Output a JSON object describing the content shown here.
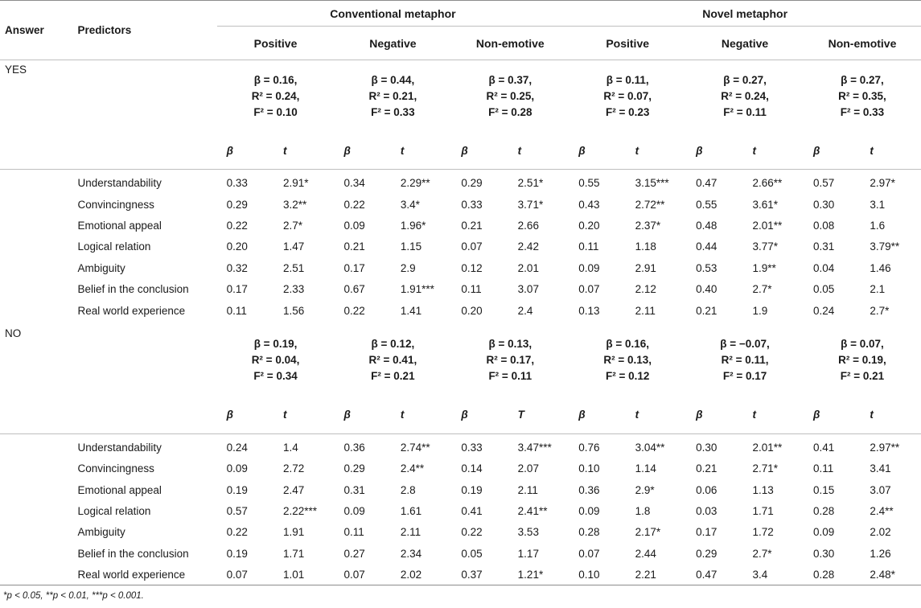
{
  "header": {
    "answer": "Answer",
    "predictors": "Predictors",
    "groups": [
      "Conventional metaphor",
      "Novel metaphor"
    ],
    "subgroups": [
      "Positive",
      "Negative",
      "Non-emotive",
      "Positive",
      "Negative",
      "Non-emotive"
    ]
  },
  "yes": {
    "label": "YES",
    "models": [
      {
        "beta": "β = 0.16,",
        "r2": "R² = 0.24,",
        "f2": "F² = 0.10"
      },
      {
        "beta": "β = 0.44,",
        "r2": "R² = 0.21,",
        "f2": "F² = 0.33"
      },
      {
        "beta": "β = 0.37,",
        "r2": "R² = 0.25,",
        "f2": "F² = 0.28"
      },
      {
        "beta": "β = 0.11,",
        "r2": "R² = 0.07,",
        "f2": "F² = 0.23"
      },
      {
        "beta": "β = 0.27,",
        "r2": "R² = 0.24,",
        "f2": "F² = 0.11"
      },
      {
        "beta": "β = 0.27,",
        "r2": "R² = 0.35,",
        "f2": "F² = 0.33"
      }
    ],
    "coef_headers": [
      "β",
      "t",
      "β",
      "t",
      "β",
      "t",
      "β",
      "t",
      "β",
      "t",
      "β",
      "t"
    ],
    "rows": [
      {
        "name": "Understandability",
        "cells": [
          "0.33",
          "2.91*",
          "0.34",
          "2.29**",
          "0.29",
          "2.51*",
          "0.55",
          "3.15***",
          "0.47",
          "2.66**",
          "0.57",
          "2.97*"
        ]
      },
      {
        "name": "Convincingness",
        "cells": [
          "0.29",
          "3.2**",
          "0.22",
          "3.4*",
          "0.33",
          "3.71*",
          "0.43",
          "2.72**",
          "0.55",
          "3.61*",
          "0.30",
          "3.1"
        ]
      },
      {
        "name": "Emotional appeal",
        "cells": [
          "0.22",
          "2.7*",
          "0.09",
          "1.96*",
          "0.21",
          "2.66",
          "0.20",
          "2.37*",
          "0.48",
          "2.01**",
          "0.08",
          "1.6"
        ]
      },
      {
        "name": "Logical relation",
        "cells": [
          "0.20",
          "1.47",
          "0.21",
          "1.15",
          "0.07",
          "2.42",
          "0.11",
          "1.18",
          "0.44",
          "3.77*",
          "0.31",
          "3.79**"
        ]
      },
      {
        "name": "Ambiguity",
        "cells": [
          "0.32",
          "2.51",
          "0.17",
          "2.9",
          "0.12",
          "2.01",
          "0.09",
          "2.91",
          "0.53",
          "1.9**",
          "0.04",
          "1.46"
        ]
      },
      {
        "name": "Belief in the conclusion",
        "cells": [
          "0.17",
          "2.33",
          "0.67",
          "1.91***",
          "0.11",
          "3.07",
          "0.07",
          "2.12",
          "0.40",
          "2.7*",
          "0.05",
          "2.1"
        ]
      },
      {
        "name": "Real world experience",
        "cells": [
          "0.11",
          "1.56",
          "0.22",
          "1.41",
          "0.20",
          "2.4",
          "0.13",
          "2.11",
          "0.21",
          "1.9",
          "0.24",
          "2.7*"
        ]
      }
    ]
  },
  "no": {
    "label": "NO",
    "models": [
      {
        "beta": "β = 0.19,",
        "r2": "R² = 0.04,",
        "f2": "F² = 0.34"
      },
      {
        "beta": "β = 0.12,",
        "r2": "R² = 0.41,",
        "f2": "F² = 0.21"
      },
      {
        "beta": "β = 0.13,",
        "r2": "R² = 0.17,",
        "f2": "F² = 0.11"
      },
      {
        "beta": "β = 0.16,",
        "r2": "R² = 0.13,",
        "f2": "F² = 0.12"
      },
      {
        "beta": "β = −0.07,",
        "r2": "R² = 0.11,",
        "f2": "F² = 0.17"
      },
      {
        "beta": "β = 0.07,",
        "r2": "R² = 0.19,",
        "f2": "F² = 0.21"
      }
    ],
    "coef_headers": [
      "β",
      "t",
      "β",
      "t",
      "β",
      "T",
      "β",
      "t",
      "β",
      "t",
      "β",
      "t"
    ],
    "rows": [
      {
        "name": "Understandability",
        "cells": [
          "0.24",
          "1.4",
          "0.36",
          "2.74**",
          "0.33",
          "3.47***",
          "0.76",
          "3.04**",
          "0.30",
          "2.01**",
          "0.41",
          "2.97**"
        ]
      },
      {
        "name": "Convincingness",
        "cells": [
          "0.09",
          "2.72",
          "0.29",
          "2.4**",
          "0.14",
          "2.07",
          "0.10",
          "1.14",
          "0.21",
          "2.71*",
          "0.11",
          "3.41"
        ]
      },
      {
        "name": "Emotional appeal",
        "cells": [
          "0.19",
          "2.47",
          "0.31",
          "2.8",
          "0.19",
          "2.11",
          "0.36",
          "2.9*",
          "0.06",
          "1.13",
          "0.15",
          "3.07"
        ]
      },
      {
        "name": "Logical relation",
        "cells": [
          "0.57",
          "2.22***",
          "0.09",
          "1.61",
          "0.41",
          "2.41**",
          "0.09",
          "1.8",
          "0.03",
          "1.71",
          "0.28",
          "2.4**"
        ]
      },
      {
        "name": "Ambiguity",
        "cells": [
          "0.22",
          "1.91",
          "0.11",
          "2.11",
          "0.22",
          "3.53",
          "0.28",
          "2.17*",
          "0.17",
          "1.72",
          "0.09",
          "2.02"
        ]
      },
      {
        "name": "Belief in the conclusion",
        "cells": [
          "0.19",
          "1.71",
          "0.27",
          "2.34",
          "0.05",
          "1.17",
          "0.07",
          "2.44",
          "0.29",
          "2.7*",
          "0.30",
          "1.26"
        ]
      },
      {
        "name": "Real world experience",
        "cells": [
          "0.07",
          "1.01",
          "0.07",
          "2.02",
          "0.37",
          "1.21*",
          "0.10",
          "2.21",
          "0.47",
          "3.4",
          "0.28",
          "2.48*"
        ]
      }
    ]
  },
  "footnote": "*p < 0.05, **p < 0.01, ***p < 0.001."
}
